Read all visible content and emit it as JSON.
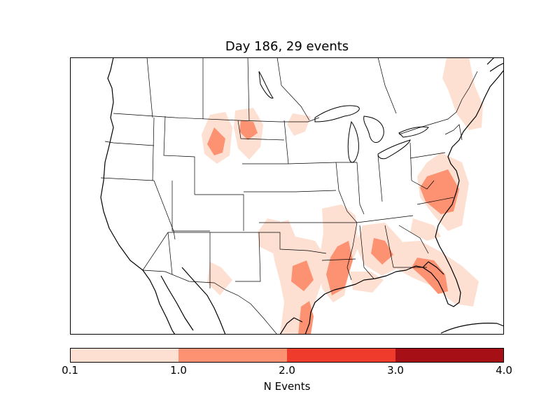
{
  "title": "Day 186, 29 events",
  "colorbar": {
    "label": "N Events",
    "ticks": [
      "0.1",
      "1.0",
      "2.0",
      "3.0",
      "4.0"
    ],
    "bins": [
      {
        "from": 0.1,
        "to": 1.0,
        "color": "#fee0d2"
      },
      {
        "from": 1.0,
        "to": 2.0,
        "color": "#fc9272"
      },
      {
        "from": 2.0,
        "to": 3.0,
        "color": "#ef3b2c"
      },
      {
        "from": 3.0,
        "to": 4.0,
        "color": "#a50f15"
      }
    ]
  },
  "colors": {
    "low": "#fee0d2",
    "mid": "#fc9272",
    "high": "#ef3b2c",
    "max": "#a50f15",
    "lines": "#000000"
  }
}
